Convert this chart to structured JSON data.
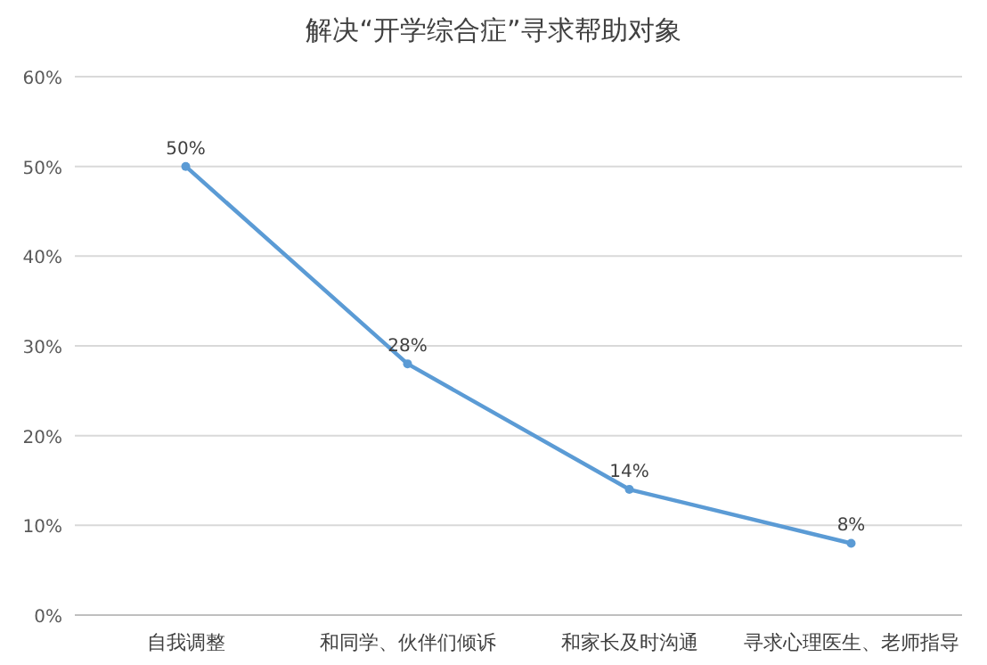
{
  "chart_data": {
    "type": "line",
    "title": "解决“开学综合症”寻求帮助对象",
    "categories": [
      "自我调整",
      "和同学、伙伴们倾诉",
      "和家长及时沟通",
      "寻求心理医生、老师指导"
    ],
    "series": [
      {
        "color": "#5b9bd5",
        "values": [
          50,
          28,
          14,
          8
        ]
      }
    ],
    "ylim": [
      0,
      60
    ],
    "yticks": [
      {
        "value": 0,
        "label": "0%"
      },
      {
        "value": 10,
        "label": "10%"
      },
      {
        "value": 20,
        "label": "20%"
      },
      {
        "value": 30,
        "label": "30%"
      },
      {
        "value": 40,
        "label": "40%"
      },
      {
        "value": 50,
        "label": "50%"
      },
      {
        "value": 60,
        "label": "60%"
      }
    ],
    "value_labels": [
      "50%",
      "28%",
      "14%",
      "8%"
    ],
    "grid": "y",
    "marker": "circle",
    "line_style": "solid"
  }
}
